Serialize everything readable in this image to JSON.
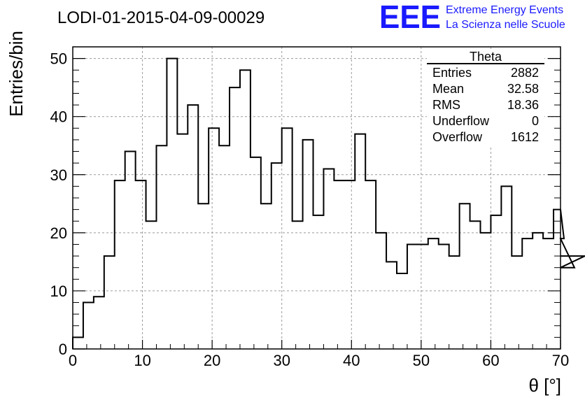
{
  "chart_data": {
    "type": "bar",
    "style": "step-histogram",
    "title": "LODI-01-2015-04-09-00029",
    "xlabel": "θ [°]",
    "ylabel": "Entries/bin",
    "xlim": [
      0,
      70
    ],
    "ylim": [
      0,
      52
    ],
    "xticks": [
      "0",
      "10",
      "20",
      "30",
      "40",
      "50",
      "60",
      "70"
    ],
    "yticks": [
      "0",
      "10",
      "20",
      "30",
      "40",
      "50"
    ],
    "grid": true,
    "bin_width": 1.5,
    "values": [
      2,
      8,
      9,
      16,
      29,
      34,
      29,
      22,
      35,
      50,
      37,
      42,
      25,
      38,
      35,
      45,
      48,
      33,
      25,
      32,
      38,
      22,
      36,
      23,
      31,
      29,
      29,
      37,
      29,
      20,
      15,
      13,
      18,
      18,
      19,
      18,
      16,
      25,
      22,
      20,
      23,
      28,
      16,
      19,
      20,
      19,
      24,
      19,
      14,
      16
    ]
  },
  "stats_box": {
    "title": "Theta",
    "rows": [
      {
        "label": "Entries",
        "value": "2882"
      },
      {
        "label": "Mean",
        "value": "32.58"
      },
      {
        "label": "RMS",
        "value": "18.36"
      },
      {
        "label": "Underflow",
        "value": "0"
      },
      {
        "label": "Overflow",
        "value": "1612"
      }
    ]
  },
  "logo": {
    "mark": "EEE",
    "line1": "Extreme Energy Events",
    "line2": "La Scienza nelle Scuole",
    "color": "#1a1aff"
  }
}
